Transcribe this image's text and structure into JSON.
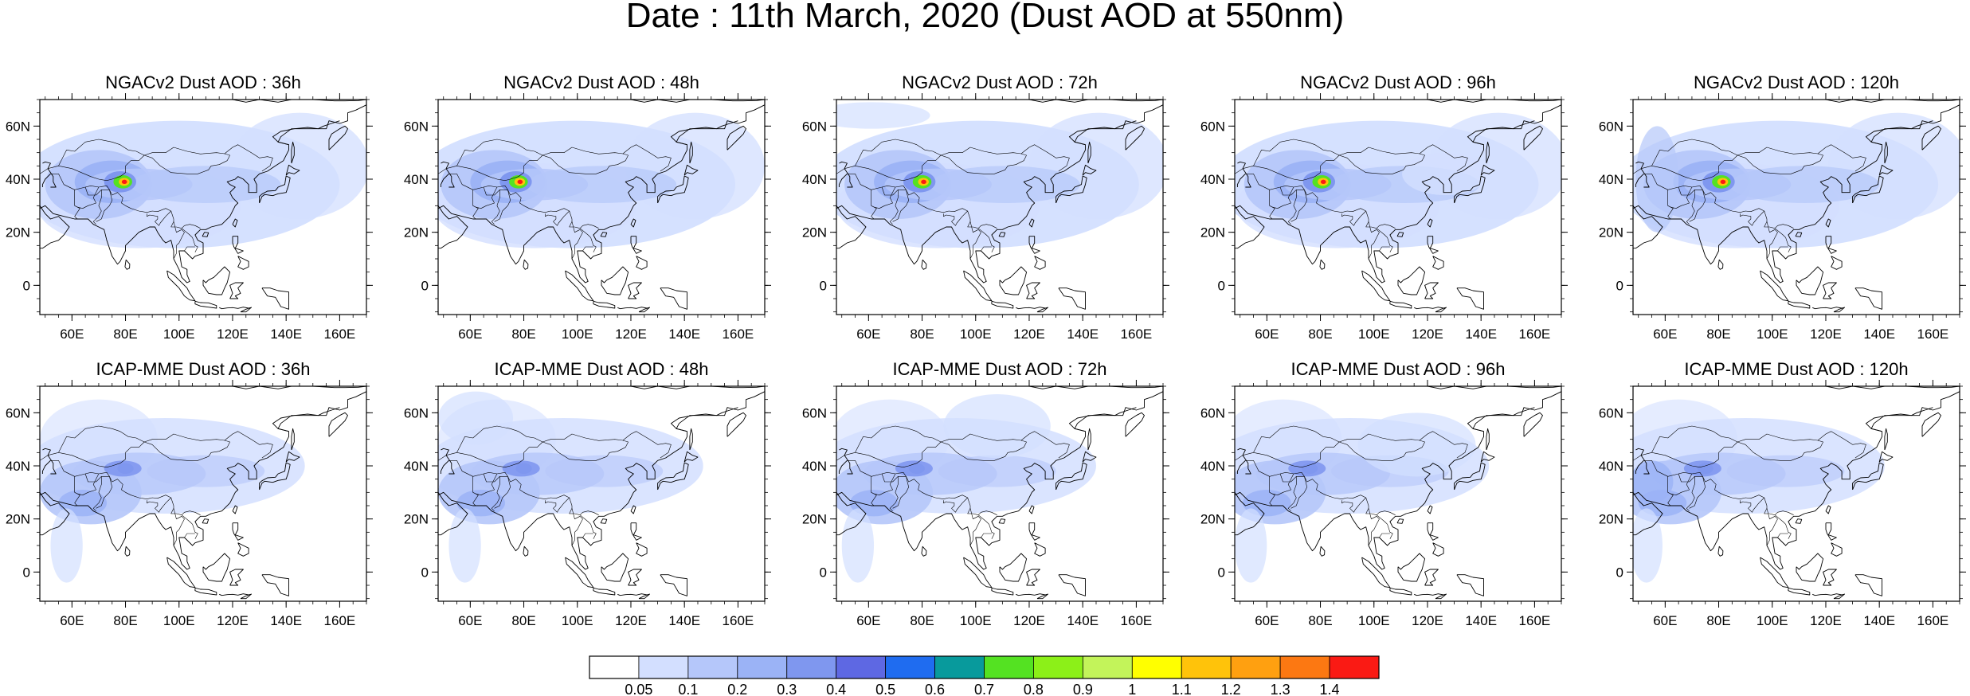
{
  "title": "Date : 11th March, 2020 (Dust AOD at 550nm)",
  "map_domain": {
    "lon_range": [
      48,
      170
    ],
    "lat_range": [
      -11,
      70
    ]
  },
  "axis": {
    "lat_ticks": [
      {
        "value": 60,
        "label": "60N"
      },
      {
        "value": 40,
        "label": "40N"
      },
      {
        "value": 20,
        "label": "20N"
      },
      {
        "value": 0,
        "label": "0"
      }
    ],
    "lon_ticks": [
      {
        "value": 60,
        "label": "60E"
      },
      {
        "value": 80,
        "label": "80E"
      },
      {
        "value": 100,
        "label": "100E"
      },
      {
        "value": 120,
        "label": "120E"
      },
      {
        "value": 140,
        "label": "140E"
      },
      {
        "value": 160,
        "label": "160E"
      }
    ]
  },
  "panels": [
    {
      "title": "NGACv2 Dust AOD : 36h",
      "model": "ngac"
    },
    {
      "title": "NGACv2 Dust AOD : 48h",
      "model": "ngac"
    },
    {
      "title": "NGACv2 Dust AOD : 72h",
      "model": "ngac"
    },
    {
      "title": "NGACv2 Dust AOD : 96h",
      "model": "ngac"
    },
    {
      "title": "NGACv2 Dust AOD : 120h",
      "model": "ngac"
    },
    {
      "title": "ICAP-MME Dust AOD : 36h",
      "model": "icap"
    },
    {
      "title": "ICAP-MME Dust AOD : 48h",
      "model": "icap"
    },
    {
      "title": "ICAP-MME Dust AOD : 72h",
      "model": "icap"
    },
    {
      "title": "ICAP-MME Dust AOD : 96h",
      "model": "icap"
    },
    {
      "title": "ICAP-MME Dust AOD : 120h",
      "model": "icap"
    }
  ],
  "colorbar": {
    "labels": [
      "0.05",
      "0.1",
      "0.2",
      "0.3",
      "0.4",
      "0.5",
      "0.6",
      "0.7",
      "0.8",
      "0.9",
      "1",
      "1.1",
      "1.2",
      "1.3",
      "1.4"
    ],
    "colors": [
      "#ffffff",
      "#d3dfff",
      "#b5c7fa",
      "#9bb3f6",
      "#7f97ef",
      "#5e68e3",
      "#1f6cf0",
      "#089a9c",
      "#54e222",
      "#8cf018",
      "#c3f45a",
      "#ffff00",
      "#ffc30a",
      "#ffa010",
      "#fc7812",
      "#fa1a14"
    ]
  }
}
